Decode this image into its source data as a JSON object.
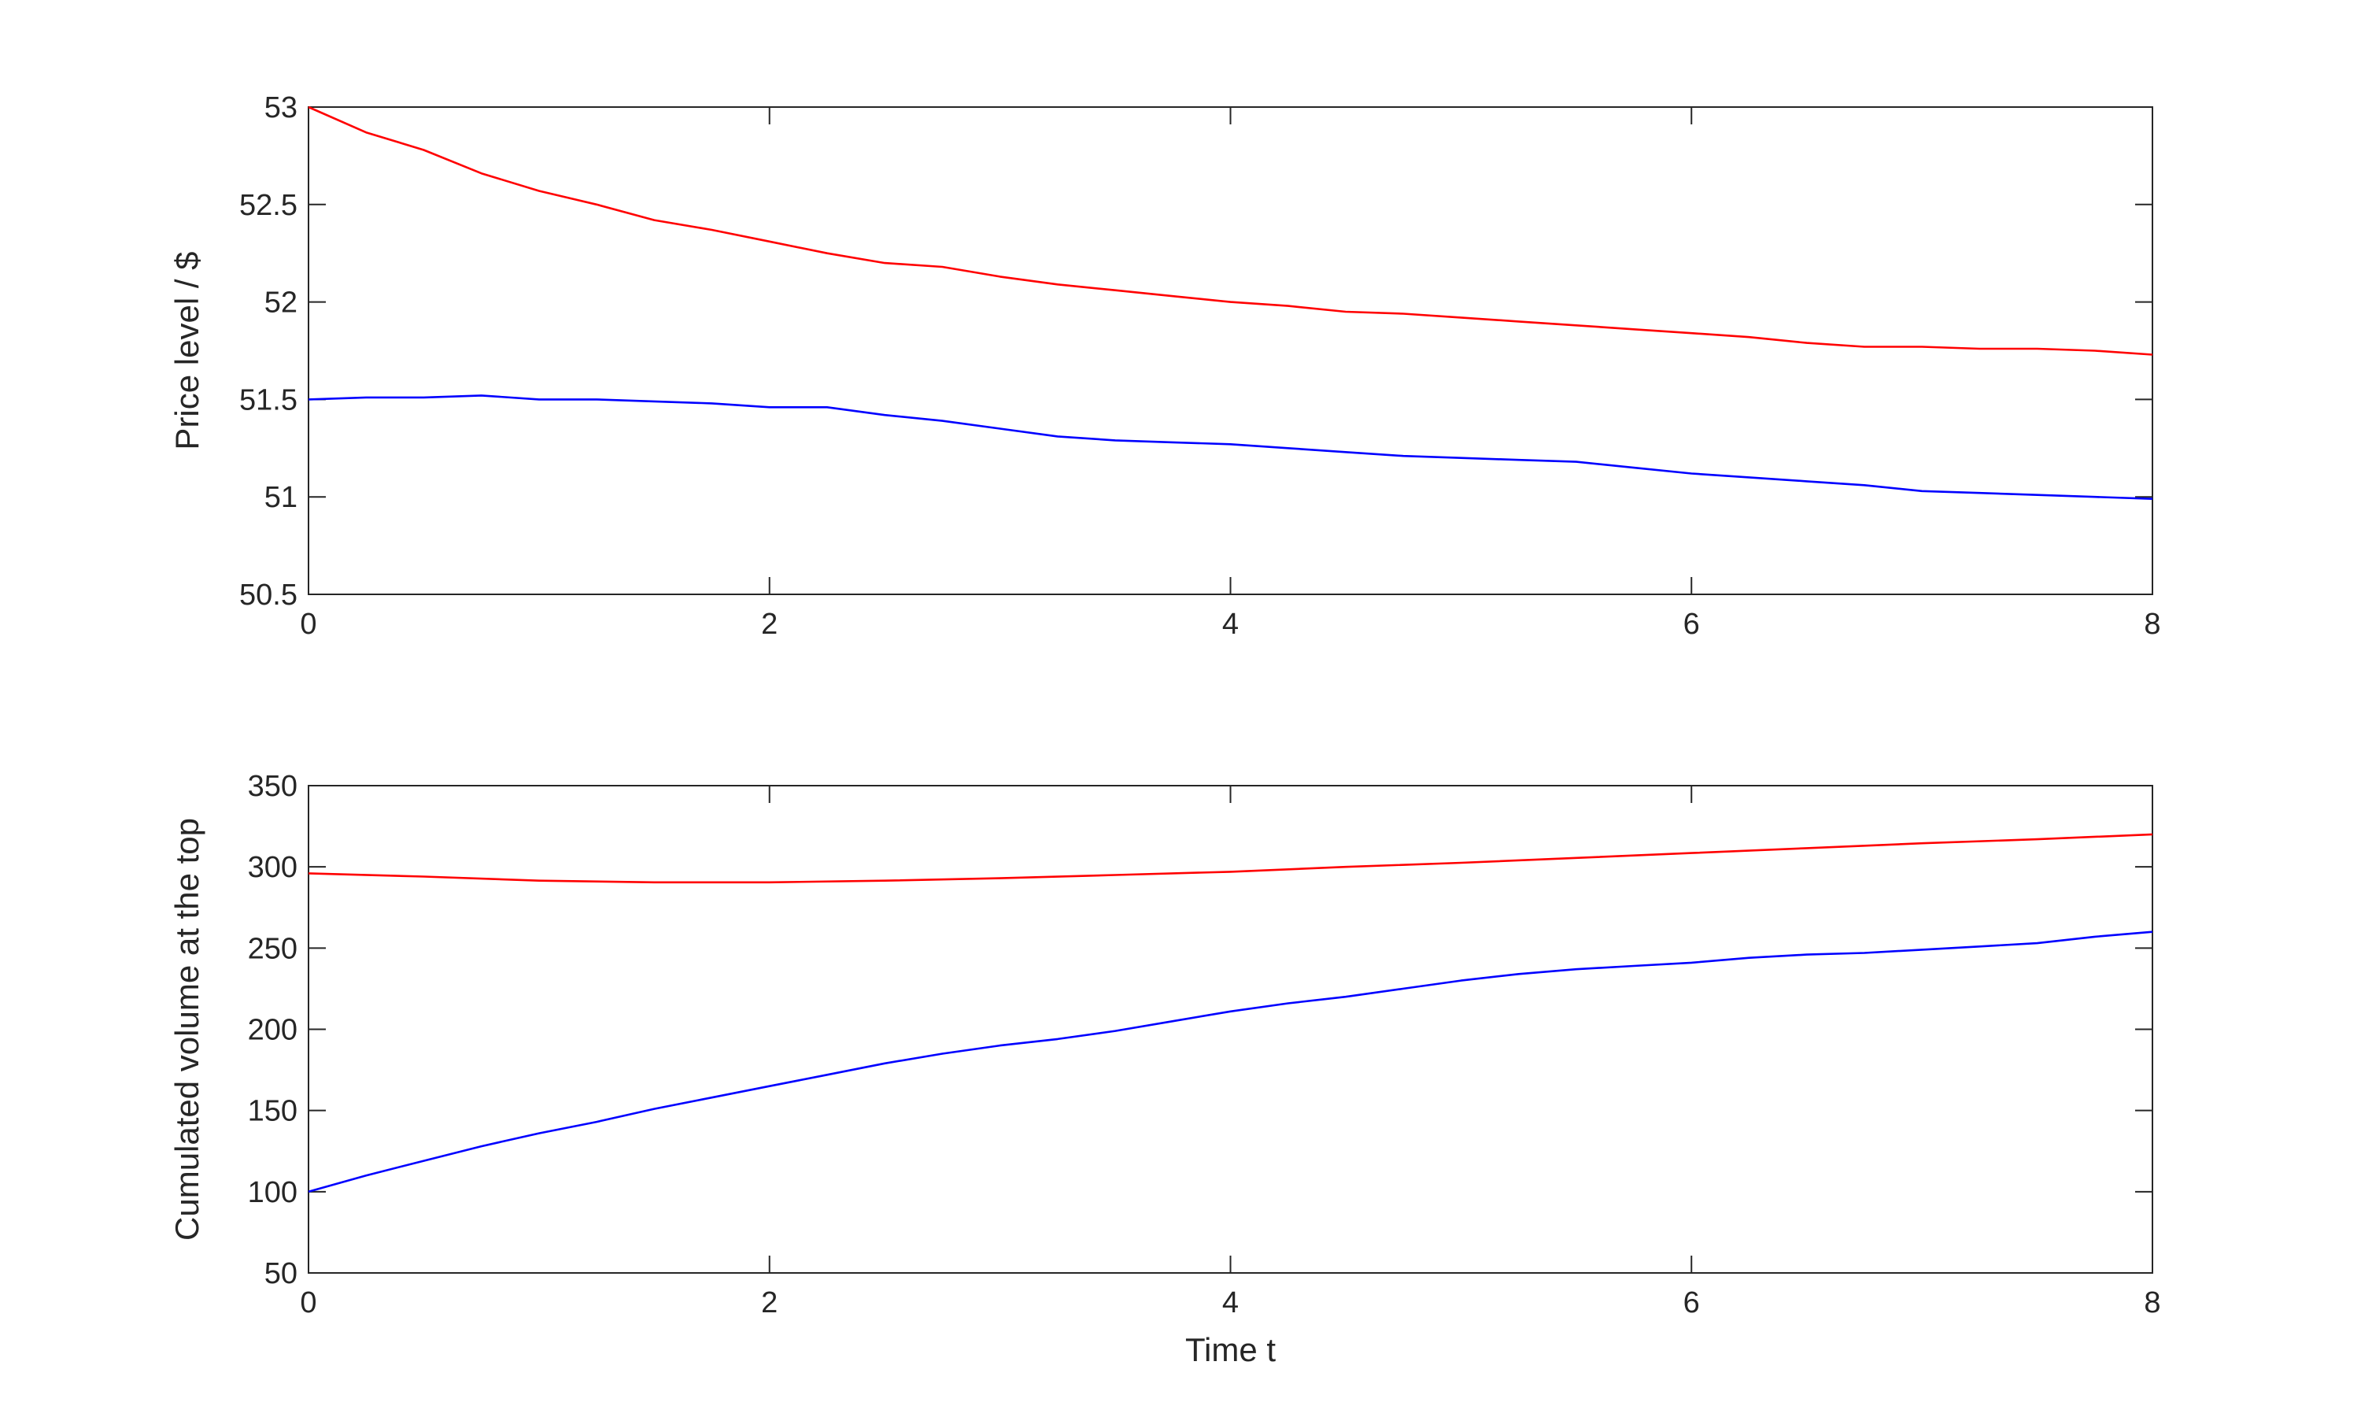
{
  "chart_data": [
    {
      "type": "line",
      "xlabel": "",
      "ylabel": "Price level / $",
      "xlim": [
        0,
        8
      ],
      "ylim": [
        50.5,
        53
      ],
      "xticks": [
        "0",
        "2",
        "4",
        "6",
        "8"
      ],
      "yticks": [
        "50.5",
        "51",
        "51.5",
        "52",
        "52.5",
        "53"
      ],
      "grid": false,
      "series": [
        {
          "color": "#ff0000",
          "x": [
            0,
            0.25,
            0.5,
            0.75,
            1.0,
            1.25,
            1.5,
            1.75,
            2.0,
            2.25,
            2.5,
            2.75,
            3.0,
            3.25,
            3.5,
            3.75,
            4.0,
            4.25,
            4.5,
            4.75,
            5.0,
            5.25,
            5.5,
            5.75,
            6.0,
            6.25,
            6.5,
            6.75,
            7.0,
            7.25,
            7.5,
            7.75,
            8.0
          ],
          "y": [
            53.0,
            52.87,
            52.78,
            52.66,
            52.57,
            52.5,
            52.42,
            52.37,
            52.31,
            52.25,
            52.2,
            52.18,
            52.13,
            52.09,
            52.06,
            52.03,
            52.0,
            51.98,
            51.95,
            51.94,
            51.92,
            51.9,
            51.88,
            51.86,
            51.84,
            51.82,
            51.79,
            51.77,
            51.77,
            51.76,
            51.76,
            51.75,
            51.73
          ]
        },
        {
          "color": "#0000ff",
          "x": [
            0,
            0.25,
            0.5,
            0.75,
            1.0,
            1.25,
            1.5,
            1.75,
            2.0,
            2.25,
            2.5,
            2.75,
            3.0,
            3.25,
            3.5,
            3.75,
            4.0,
            4.25,
            4.5,
            4.75,
            5.0,
            5.25,
            5.5,
            5.75,
            6.0,
            6.25,
            6.5,
            6.75,
            7.0,
            7.25,
            7.5,
            7.75,
            8.0
          ],
          "y": [
            51.5,
            51.51,
            51.51,
            51.52,
            51.5,
            51.5,
            51.49,
            51.48,
            51.46,
            51.46,
            51.42,
            51.39,
            51.35,
            51.31,
            51.29,
            51.28,
            51.27,
            51.25,
            51.23,
            51.21,
            51.2,
            51.19,
            51.18,
            51.15,
            51.12,
            51.1,
            51.08,
            51.06,
            51.03,
            51.02,
            51.01,
            51.0,
            50.99
          ]
        }
      ]
    },
    {
      "type": "line",
      "xlabel": "Time t",
      "ylabel": "Cumulated volume at the top",
      "xlim": [
        0,
        8
      ],
      "ylim": [
        50,
        350
      ],
      "xticks": [
        "0",
        "2",
        "4",
        "6",
        "8"
      ],
      "yticks": [
        "50",
        "100",
        "150",
        "200",
        "250",
        "300",
        "350"
      ],
      "grid": false,
      "series": [
        {
          "color": "#ff0000",
          "x": [
            0,
            0.5,
            1.0,
            1.5,
            2.0,
            2.5,
            3.0,
            3.5,
            4.0,
            4.5,
            5.0,
            5.5,
            6.0,
            6.5,
            7.0,
            7.5,
            8.0
          ],
          "y": [
            296,
            294,
            291.5,
            290.5,
            290.5,
            291.5,
            293,
            295,
            297,
            300,
            302.5,
            305.5,
            308.5,
            311.5,
            314.5,
            317,
            320
          ]
        },
        {
          "color": "#0000ff",
          "x": [
            0,
            0.25,
            0.5,
            0.75,
            1.0,
            1.25,
            1.5,
            1.75,
            2.0,
            2.25,
            2.5,
            2.75,
            3.0,
            3.25,
            3.5,
            3.75,
            4.0,
            4.25,
            4.5,
            4.75,
            5.0,
            5.25,
            5.5,
            5.75,
            6.0,
            6.25,
            6.5,
            6.75,
            7.0,
            7.25,
            7.5,
            7.75,
            8.0
          ],
          "y": [
            100,
            110,
            119,
            128,
            136,
            143,
            151,
            158,
            165,
            172,
            179,
            185,
            190,
            194,
            199,
            205,
            211,
            216,
            220,
            225,
            230,
            234,
            237,
            239,
            241,
            244,
            246,
            247,
            249,
            251,
            253,
            257,
            260
          ]
        }
      ]
    }
  ]
}
